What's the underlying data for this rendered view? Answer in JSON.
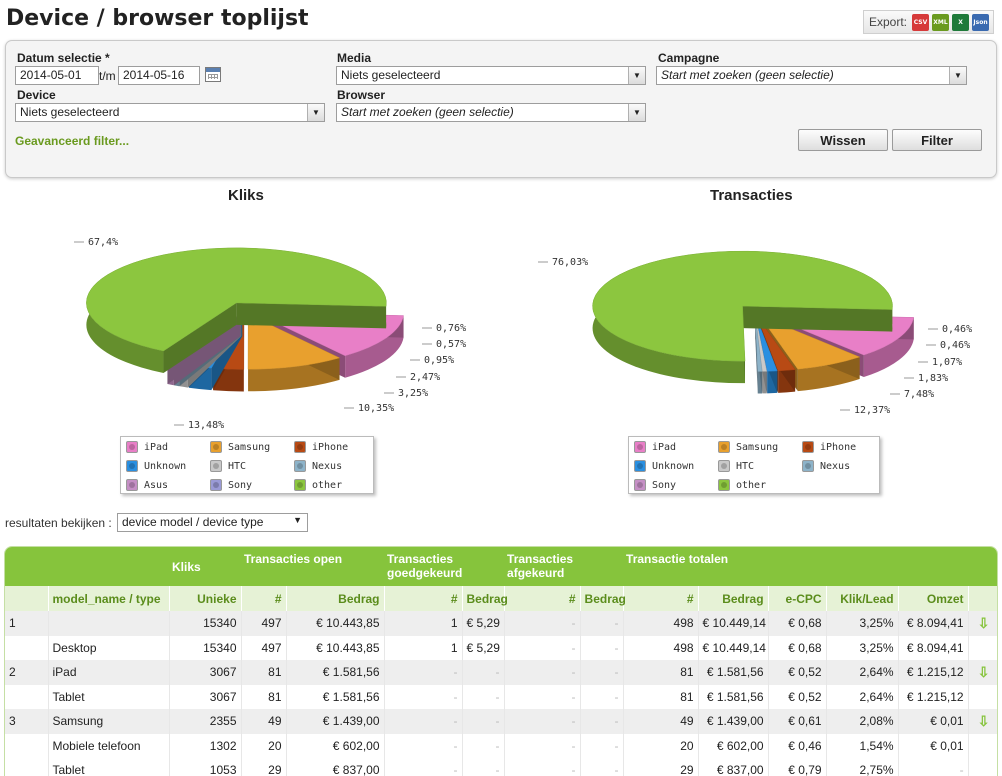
{
  "page": {
    "title": "Device / browser toplijst"
  },
  "export": {
    "label": "Export:",
    "formats": [
      {
        "label": "CSV",
        "name": "csv-export-icon",
        "color": "#d63a3a"
      },
      {
        "label": "XML",
        "name": "xml-export-icon",
        "color": "#6a9a1f"
      },
      {
        "label": "X",
        "name": "excel-export-icon",
        "color": "#1f7a3a"
      },
      {
        "label": "Json",
        "name": "json-export-icon",
        "color": "#3a6ab0"
      }
    ]
  },
  "filters": {
    "datum_label": "Datum selectie *",
    "date_from": "2014-05-01",
    "tm": "t/m",
    "date_to": "2014-05-16",
    "media_label": "Media",
    "media_value": "Niets geselecteerd",
    "campagne_label": "Campagne",
    "campagne_value": "Start met zoeken (geen selectie)",
    "device_label": "Device",
    "device_value": "Niets geselecteerd",
    "browser_label": "Browser",
    "browser_value": "Start met zoeken (geen selectie)",
    "advanced_link": "Geavanceerd filter...",
    "clear_button": "Wissen",
    "filter_button": "Filter"
  },
  "chart_data": [
    {
      "type": "pie",
      "title": "Kliks",
      "slices": [
        {
          "label": "iPad",
          "value": 13.48,
          "color": "#e87fc7"
        },
        {
          "label": "Samsung",
          "value": 10.35,
          "color": "#e8a02e"
        },
        {
          "label": "iPhone",
          "value": 3.25,
          "color": "#b84a14"
        },
        {
          "label": "Unknown",
          "value": 2.47,
          "color": "#2a8fe0"
        },
        {
          "label": "HTC",
          "value": 0.95,
          "color": "#c9c9c9"
        },
        {
          "label": "Nexus",
          "value": 0.57,
          "color": "#8db3c9"
        },
        {
          "label": "Asus",
          "value": 0.76,
          "color": "#c58fc5"
        },
        {
          "label": "Sony",
          "value": 0.0,
          "color": "#9a9ad6"
        },
        {
          "label": "other",
          "value": 67.4,
          "color": "#8cc63f"
        }
      ],
      "data_labels": [
        "67,4%",
        "0,76%",
        "0,57%",
        "0,95%",
        "2,47%",
        "3,25%",
        "10,35%",
        "13,48%"
      ],
      "legend": [
        "iPad",
        "Samsung",
        "iPhone",
        "Unknown",
        "HTC",
        "Nexus",
        "Asus",
        "Sony",
        "other"
      ]
    },
    {
      "type": "pie",
      "title": "Transacties",
      "slices": [
        {
          "label": "iPad",
          "value": 12.37,
          "color": "#e87fc7"
        },
        {
          "label": "Samsung",
          "value": 7.48,
          "color": "#e8a02e"
        },
        {
          "label": "iPhone",
          "value": 1.83,
          "color": "#b84a14"
        },
        {
          "label": "Unknown",
          "value": 1.07,
          "color": "#2a8fe0"
        },
        {
          "label": "HTC",
          "value": 0.46,
          "color": "#c9c9c9"
        },
        {
          "label": "Nexus",
          "value": 0.46,
          "color": "#8db3c9"
        },
        {
          "label": "Sony",
          "value": 0.0,
          "color": "#c58fc5"
        },
        {
          "label": "other",
          "value": 76.03,
          "color": "#8cc63f"
        }
      ],
      "data_labels": [
        "76,03%",
        "0,46%",
        "0,46%",
        "1,07%",
        "1,83%",
        "7,48%",
        "12,37%"
      ],
      "legend": [
        "iPad",
        "Samsung",
        "iPhone",
        "Unknown",
        "HTC",
        "Nexus",
        "Sony",
        "other"
      ]
    }
  ],
  "results": {
    "label": "resultaten bekijken :",
    "selected": "device model / device type"
  },
  "table": {
    "group_headers": [
      "Kliks",
      "Transacties open",
      "Transacties goedgekeurd",
      "Transacties afgekeurd",
      "Transactie totalen"
    ],
    "columns": [
      "model_name / type",
      "Unieke",
      "#",
      "Bedrag",
      "#",
      "Bedrag",
      "#",
      "Bedrag",
      "#",
      "Bedrag",
      "e-CPC",
      "Klik/Lead",
      "Omzet"
    ],
    "rows": [
      {
        "kind": "grp",
        "cells": [
          "1",
          "",
          "15340",
          "497",
          "€ 10.443,85",
          "1",
          "€ 5,29",
          "-",
          "-",
          "498",
          "€ 10.449,14",
          "€ 0,68",
          "3,25%",
          "€ 8.094,41"
        ],
        "expand": true
      },
      {
        "kind": "sub",
        "cells": [
          "",
          "Desktop",
          "15340",
          "497",
          "€ 10.443,85",
          "1",
          "€ 5,29",
          "-",
          "-",
          "498",
          "€ 10.449,14",
          "€ 0,68",
          "3,25%",
          "€ 8.094,41"
        ],
        "expand": false
      },
      {
        "kind": "grp",
        "cells": [
          "2",
          "iPad",
          "3067",
          "81",
          "€ 1.581,56",
          "-",
          "-",
          "-",
          "-",
          "81",
          "€ 1.581,56",
          "€ 0,52",
          "2,64%",
          "€ 1.215,12"
        ],
        "expand": true
      },
      {
        "kind": "sub",
        "cells": [
          "",
          "Tablet",
          "3067",
          "81",
          "€ 1.581,56",
          "-",
          "-",
          "-",
          "-",
          "81",
          "€ 1.581,56",
          "€ 0,52",
          "2,64%",
          "€ 1.215,12"
        ],
        "expand": false
      },
      {
        "kind": "grp",
        "cells": [
          "3",
          "Samsung",
          "2355",
          "49",
          "€ 1.439,00",
          "-",
          "-",
          "-",
          "-",
          "49",
          "€ 1.439,00",
          "€ 0,61",
          "2,08%",
          "€ 0,01"
        ],
        "expand": true
      },
      {
        "kind": "sub",
        "cells": [
          "",
          "Mobiele telefoon",
          "1302",
          "20",
          "€ 602,00",
          "-",
          "-",
          "-",
          "-",
          "20",
          "€ 602,00",
          "€ 0,46",
          "1,54%",
          "€ 0,01"
        ],
        "expand": false
      },
      {
        "kind": "sub",
        "cells": [
          "",
          "Tablet",
          "1053",
          "29",
          "€ 837,00",
          "-",
          "-",
          "-",
          "-",
          "29",
          "€ 837,00",
          "€ 0,79",
          "2,75%",
          "-"
        ],
        "expand": false
      }
    ]
  }
}
